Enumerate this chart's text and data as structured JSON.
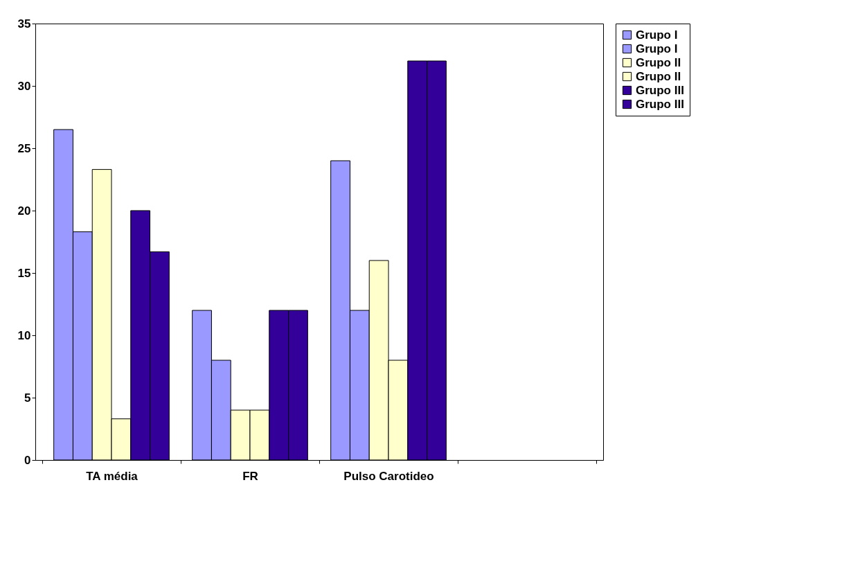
{
  "chart_data": {
    "type": "bar",
    "categories": [
      "TA média",
      "FR",
      "Pulso Carotideo",
      null
    ],
    "series": [
      {
        "name": "Grupo I",
        "color": "#9999ff",
        "values": [
          26.5,
          12,
          24,
          null
        ]
      },
      {
        "name": "Grupo I",
        "color": "#9999ff",
        "values": [
          18.3,
          8,
          12,
          null
        ]
      },
      {
        "name": "Grupo II",
        "color": "#ffffcc",
        "values": [
          23.3,
          4,
          16,
          null
        ]
      },
      {
        "name": "Grupo II",
        "color": "#ffffcc",
        "values": [
          3.3,
          4,
          8,
          null
        ]
      },
      {
        "name": "Grupo III",
        "color": "#330099",
        "values": [
          20,
          12,
          32,
          null
        ]
      },
      {
        "name": "Grupo III",
        "color": "#330099",
        "values": [
          16.7,
          12,
          32,
          null
        ]
      }
    ],
    "ylim": [
      0,
      35
    ],
    "yticks": [
      0,
      5,
      10,
      15,
      20,
      25,
      30,
      35
    ],
    "grid": false,
    "legend": "right"
  }
}
